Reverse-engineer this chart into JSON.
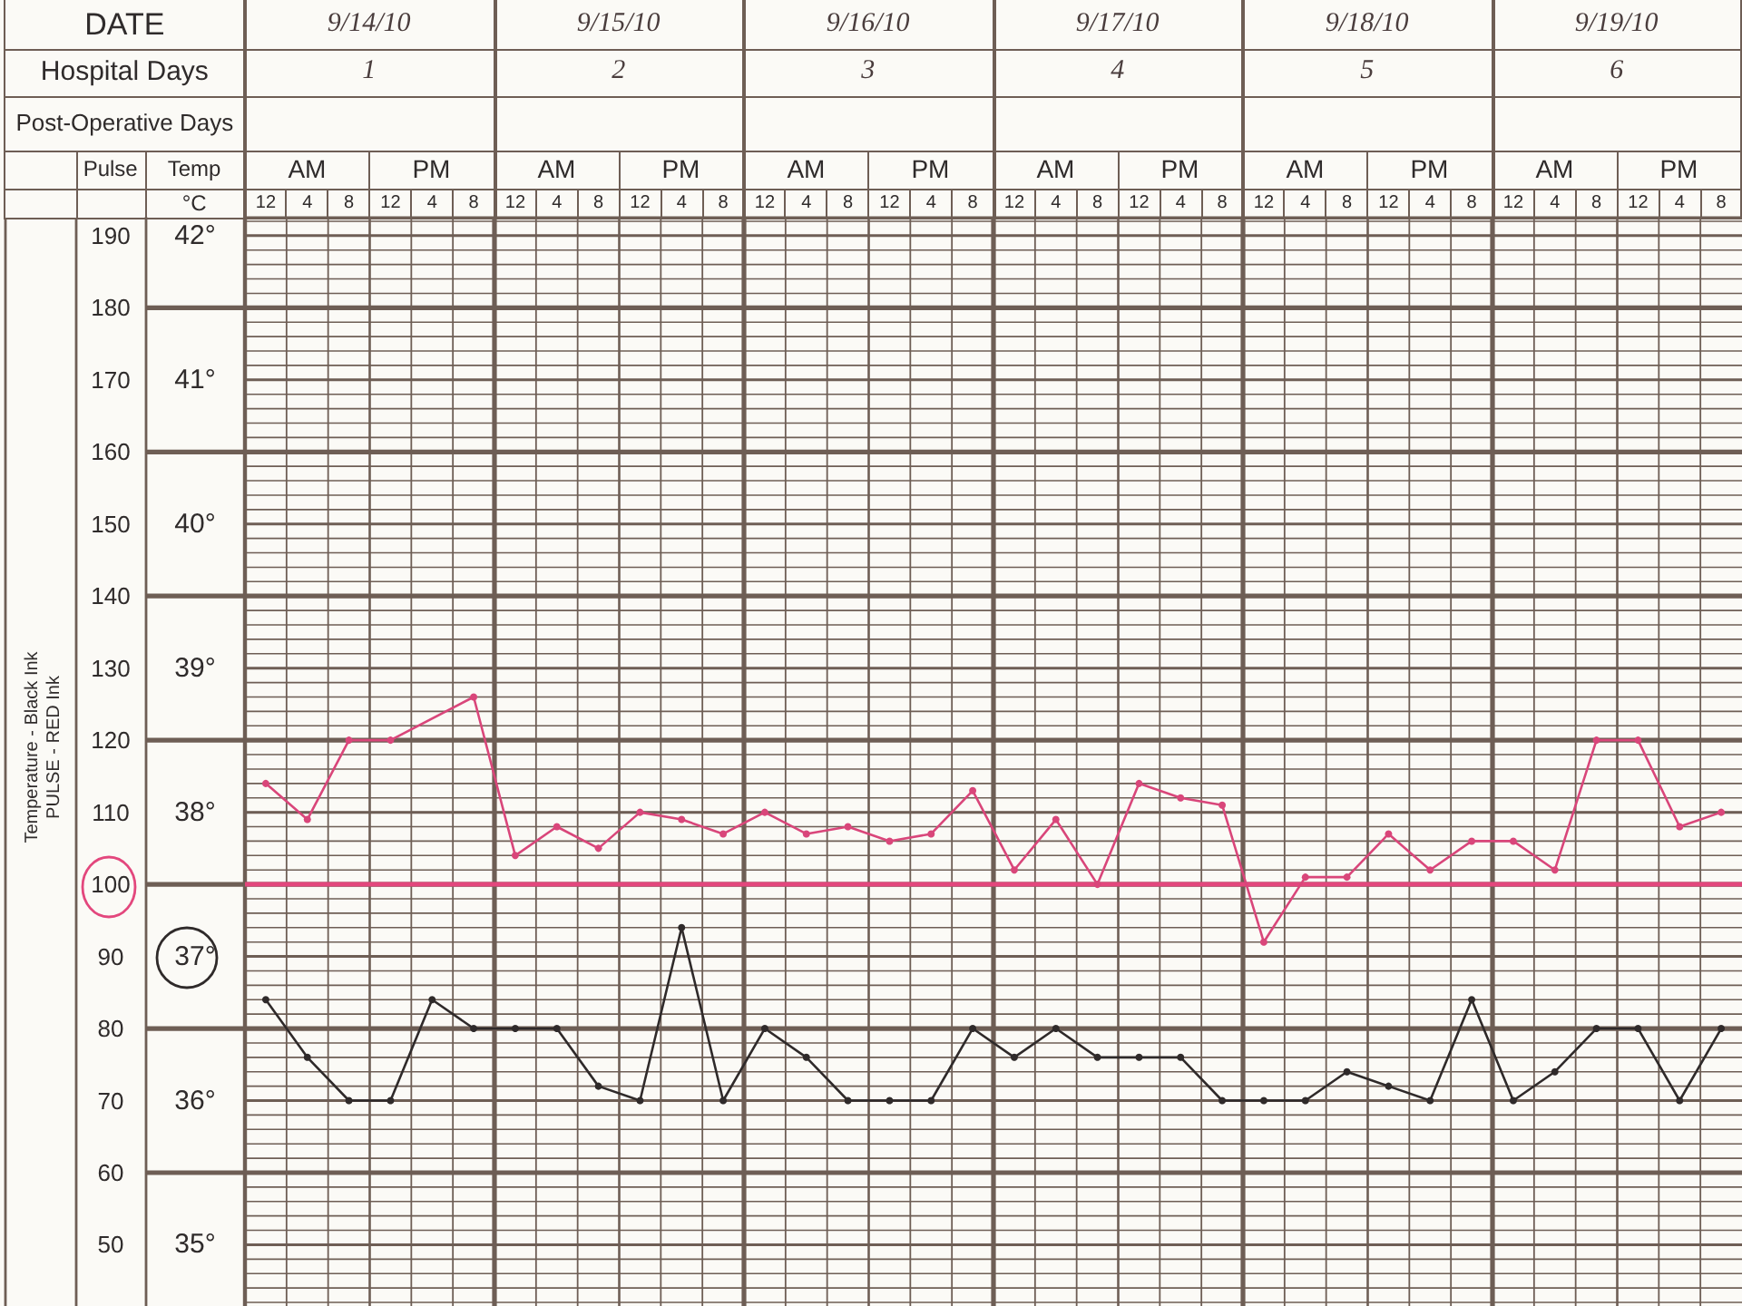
{
  "chart_data": {
    "type": "line",
    "categories": [
      "12",
      "4",
      "8",
      "12",
      "4",
      "8",
      "12",
      "4",
      "8",
      "12",
      "4",
      "8",
      "12",
      "4",
      "8",
      "12",
      "4",
      "8",
      "12",
      "4",
      "8",
      "12",
      "4",
      "8",
      "12",
      "4",
      "8",
      "12",
      "4",
      "8",
      "12",
      "4",
      "8",
      "12",
      "4",
      "8"
    ],
    "ylabel": "Pulse",
    "ylim": [
      41.5,
      192.5
    ],
    "yticks": [
      50,
      60,
      70,
      80,
      90,
      100,
      110,
      120,
      130,
      140,
      150,
      160,
      170,
      180,
      190
    ],
    "y2label": "Temp",
    "y2lim": [
      34.575,
      42.125
    ],
    "y2ticks": [
      {
        "value": 35,
        "label": "35°"
      },
      {
        "value": 36,
        "label": "36°"
      },
      {
        "value": 37,
        "label": "37°"
      },
      {
        "value": 38,
        "label": "38°"
      },
      {
        "value": 39,
        "label": "39°"
      },
      {
        "value": 40,
        "label": "40°"
      },
      {
        "value": 41,
        "label": "41°"
      },
      {
        "value": 42,
        "label": "42°"
      }
    ],
    "series": [
      {
        "color": "#d9467a",
        "values": [
          114,
          109,
          120,
          120,
          null,
          126,
          104,
          108,
          105,
          110,
          109,
          107,
          110,
          107,
          108,
          106,
          107,
          113,
          102,
          109,
          100,
          114,
          112,
          111,
          92,
          101,
          101,
          107,
          102,
          106,
          106,
          102,
          120,
          120,
          108,
          110
        ]
      },
      {
        "color": "#2f2a2a",
        "axis": "y2",
        "values": [
          36.7,
          36.3,
          36,
          36,
          36.7,
          36.5,
          36.5,
          36.5,
          36.1,
          36,
          37.2,
          36,
          36.5,
          36.3,
          36,
          36,
          36,
          36.5,
          36.3,
          36.5,
          36.3,
          36.3,
          36.3,
          36,
          36,
          36,
          36.2,
          36.1,
          36,
          36.7,
          36,
          36.2,
          36.5,
          36.5,
          36,
          36.5
        ]
      }
    ],
    "ref_lines": [
      {
        "axis": "y",
        "value": 100,
        "color": "#e3477d"
      }
    ],
    "annotations": [
      "DATE",
      "9/14/10",
      "9/15/10",
      "9/16/10",
      "9/17/10",
      "9/18/10",
      "9/19/10",
      "Hospital Days",
      "1",
      "2",
      "3",
      "4",
      "5",
      "6",
      "Post-Operative Days",
      "AM",
      "PM",
      "AM",
      "PM",
      "AM",
      "PM",
      "AM",
      "PM",
      "AM",
      "PM",
      "AM",
      "PM",
      "°C",
      "Temperature - Black Ink",
      "PULSE - RED Ink"
    ],
    "grid": true,
    "marker": "circle"
  }
}
